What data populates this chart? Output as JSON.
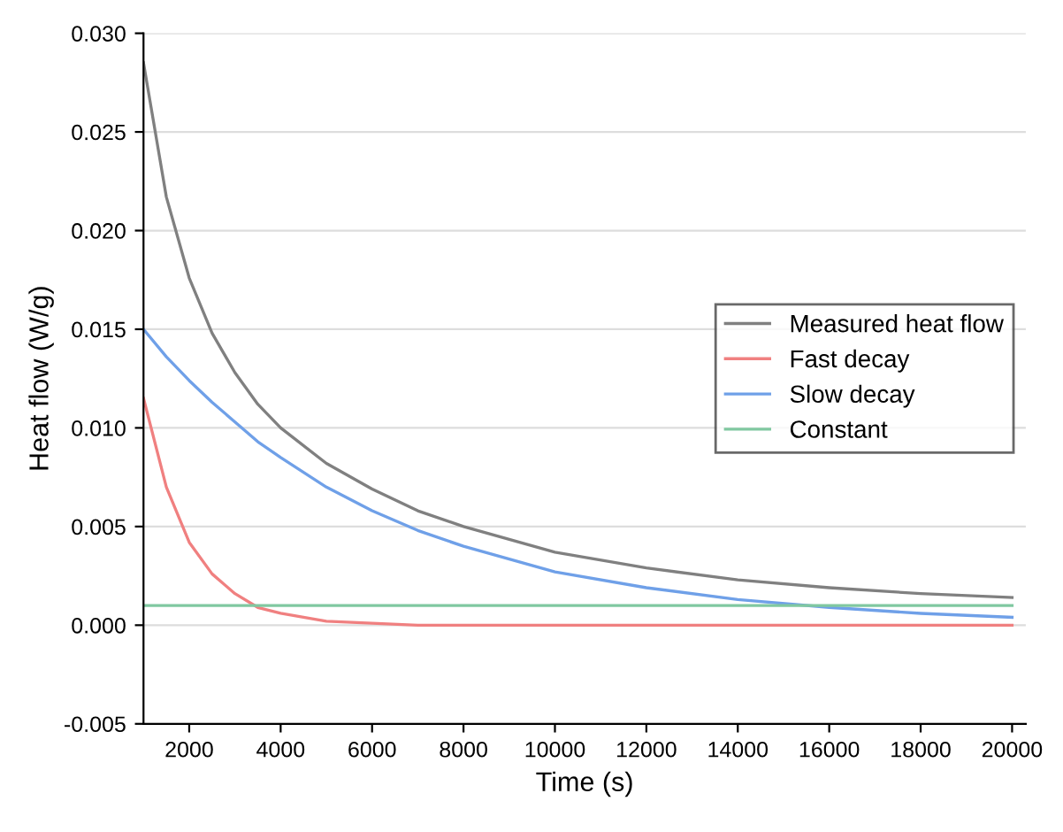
{
  "chart_data": {
    "type": "line",
    "xlabel": "Time (s)",
    "ylabel": "Heat flow (W/g)",
    "xlim": [
      1000,
      20300
    ],
    "xticks": [
      2000,
      4000,
      6000,
      8000,
      10000,
      12000,
      14000,
      16000,
      18000,
      20000
    ],
    "ylim": [
      -0.005,
      0.03
    ],
    "yticks": [
      {
        "value": -0.005,
        "label": "-0.005"
      },
      {
        "value": 0,
        "label": "0.000"
      },
      {
        "value": 0.005,
        "label": "0.005"
      },
      {
        "value": 0.01,
        "label": "0.010"
      },
      {
        "value": 0.015,
        "label": "0.015"
      },
      {
        "value": 0.02,
        "label": "0.020"
      },
      {
        "value": 0.025,
        "label": "0.025"
      },
      {
        "value": 0.03,
        "label": "0.030"
      }
    ],
    "x": [
      1000,
      1500,
      2000,
      2500,
      3000,
      3500,
      4000,
      5000,
      6000,
      7000,
      8000,
      10000,
      12000,
      14000,
      16000,
      18000,
      20000
    ],
    "grid": "y",
    "legend": "center right",
    "marker": "none",
    "line_style": "solid",
    "series": [
      {
        "name": "Measured heat flow",
        "color": "#808080",
        "values": [
          0.0285,
          0.0217,
          0.0176,
          0.0148,
          0.0128,
          0.0112,
          0.01,
          0.0082,
          0.0069,
          0.0058,
          0.005,
          0.0037,
          0.0029,
          0.0023,
          0.0019,
          0.0016,
          0.0014
        ]
      },
      {
        "name": "Fast decay",
        "color": "#f08080",
        "values": [
          0.0115,
          0.007,
          0.0042,
          0.0026,
          0.0016,
          0.0009,
          0.0006,
          0.0002,
          0.0001,
          0,
          0,
          0,
          0,
          0,
          0,
          0,
          0
        ]
      },
      {
        "name": "Slow decay",
        "color": "#6fa0e8",
        "values": [
          0.015,
          0.0136,
          0.0124,
          0.0113,
          0.0103,
          0.0093,
          0.0085,
          0.007,
          0.0058,
          0.0048,
          0.004,
          0.0027,
          0.0019,
          0.0013,
          0.0009,
          0.0006,
          0.0004
        ]
      },
      {
        "name": "Constant",
        "color": "#80c8a0",
        "values": [
          0.001,
          0.001,
          0.001,
          0.001,
          0.001,
          0.001,
          0.001,
          0.001,
          0.001,
          0.001,
          0.001,
          0.001,
          0.001,
          0.001,
          0.001,
          0.001,
          0.001
        ]
      }
    ]
  }
}
